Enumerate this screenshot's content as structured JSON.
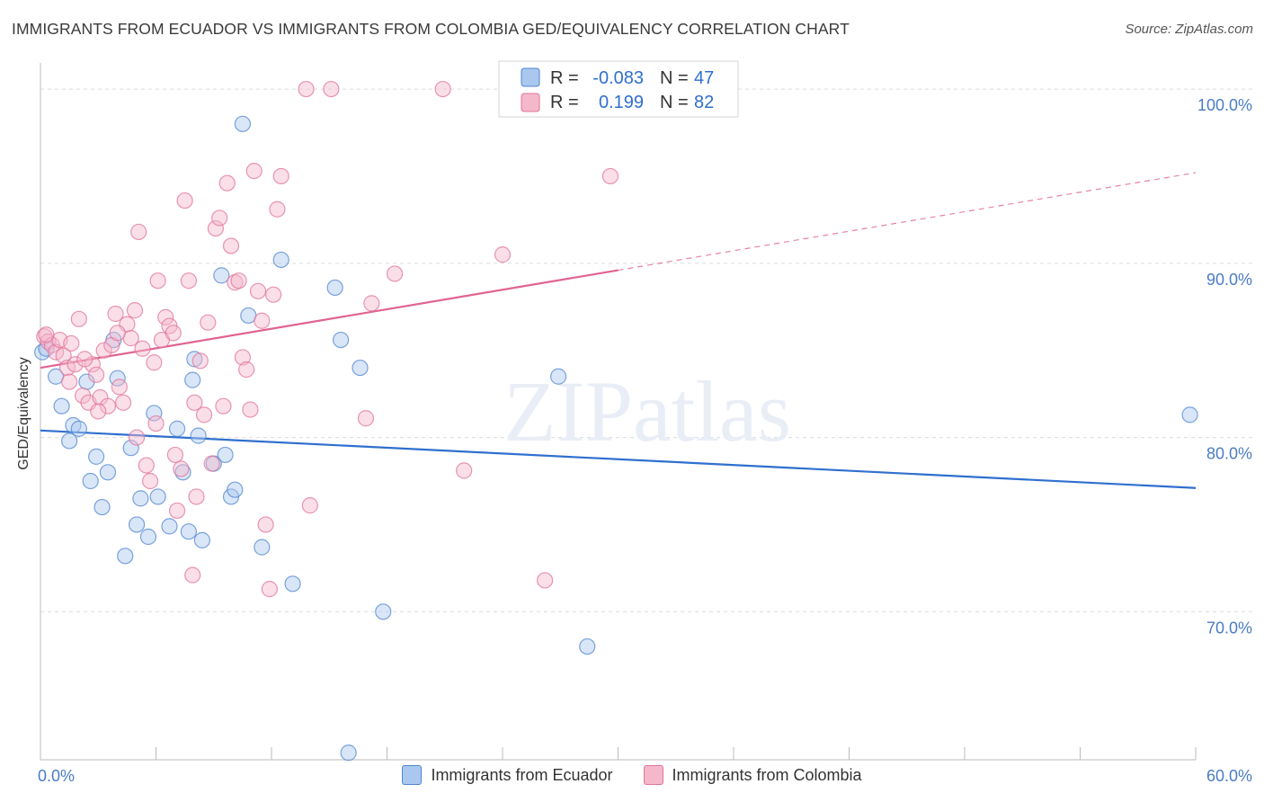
{
  "header": {
    "title": "IMMIGRANTS FROM ECUADOR VS IMMIGRANTS FROM COLOMBIA GED/EQUIVALENCY CORRELATION CHART",
    "source": "Source: ZipAtlas.com"
  },
  "watermark": "ZIPatlas",
  "colors": {
    "ecuador_fill": "#aac8ef",
    "ecuador_stroke": "#4f86cf",
    "ecuador_line": "#2f6fcf",
    "colombia_fill": "#f5b8cb",
    "colombia_stroke": "#e2739a",
    "colombia_line": "#e06391",
    "tick_text": "#4a7cc4",
    "grid": "#dcdcdc"
  },
  "stats_box": {
    "rows": [
      {
        "series": "ecuador",
        "r_label": "R =",
        "r_value": "-0.083",
        "n_label": "N =",
        "n_value": "47"
      },
      {
        "series": "colombia",
        "r_label": "R =",
        "r_value": "0.199",
        "n_label": "N =",
        "n_value": "82"
      }
    ]
  },
  "chart_data": {
    "type": "scatter",
    "title": "IMMIGRANTS FROM ECUADOR VS IMMIGRANTS FROM COLOMBIA GED/EQUIVALENCY CORRELATION CHART",
    "xlabel": "",
    "ylabel": "GED/Equivalency",
    "xlim": [
      0,
      60
    ],
    "ylim": [
      61.5,
      101.5
    ],
    "x_tick_labels": [
      "0.0%",
      "60.0%"
    ],
    "y_ticks": [
      70,
      80,
      90,
      100
    ],
    "y_tick_labels": [
      "70.0%",
      "80.0%",
      "90.0%",
      "100.0%"
    ],
    "grid": true,
    "legend_position": "bottom-center",
    "series": [
      {
        "name": "Immigrants from Ecuador",
        "key": "ecuador",
        "r": -0.083,
        "n": 47,
        "trend": {
          "x": [
            0,
            60
          ],
          "y": [
            80.4,
            77.1
          ]
        },
        "points": [
          [
            0.1,
            84.9
          ],
          [
            0.3,
            85.1
          ],
          [
            0.8,
            83.5
          ],
          [
            1.1,
            81.8
          ],
          [
            1.5,
            79.8
          ],
          [
            1.7,
            80.7
          ],
          [
            2.0,
            80.5
          ],
          [
            2.4,
            83.2
          ],
          [
            2.6,
            77.5
          ],
          [
            2.9,
            78.9
          ],
          [
            3.2,
            76.0
          ],
          [
            3.5,
            78.0
          ],
          [
            3.8,
            85.6
          ],
          [
            4.0,
            83.4
          ],
          [
            4.4,
            73.2
          ],
          [
            4.7,
            79.4
          ],
          [
            5.0,
            75.0
          ],
          [
            5.2,
            76.5
          ],
          [
            5.6,
            74.3
          ],
          [
            5.9,
            81.4
          ],
          [
            6.1,
            76.6
          ],
          [
            6.7,
            74.9
          ],
          [
            7.1,
            80.5
          ],
          [
            7.4,
            78.0
          ],
          [
            7.7,
            74.6
          ],
          [
            7.9,
            83.3
          ],
          [
            8.2,
            80.1
          ],
          [
            8.4,
            74.1
          ],
          [
            9.0,
            78.5
          ],
          [
            9.4,
            89.3
          ],
          [
            9.6,
            79.0
          ],
          [
            9.9,
            76.6
          ],
          [
            10.1,
            77.0
          ],
          [
            10.5,
            98.0
          ],
          [
            10.8,
            87.0
          ],
          [
            11.5,
            73.7
          ],
          [
            12.5,
            90.2
          ],
          [
            13.1,
            71.6
          ],
          [
            15.3,
            88.6
          ],
          [
            15.6,
            85.6
          ],
          [
            16.0,
            61.9
          ],
          [
            16.6,
            84.0
          ],
          [
            17.8,
            70.0
          ],
          [
            26.9,
            83.5
          ],
          [
            28.4,
            68.0
          ],
          [
            59.7,
            81.3
          ],
          [
            8.0,
            84.5
          ]
        ]
      },
      {
        "name": "Immigrants from Colombia",
        "key": "colombia",
        "r": 0.199,
        "n": 82,
        "trend": {
          "x": [
            0,
            30,
            60
          ],
          "y": [
            84.0,
            89.6,
            95.2
          ]
        },
        "trend_solid_until": 30,
        "points": [
          [
            0.2,
            85.8
          ],
          [
            0.4,
            85.5
          ],
          [
            0.6,
            85.3
          ],
          [
            0.8,
            84.9
          ],
          [
            1.0,
            85.6
          ],
          [
            1.2,
            84.7
          ],
          [
            1.4,
            84.0
          ],
          [
            1.6,
            85.4
          ],
          [
            1.8,
            84.2
          ],
          [
            2.0,
            86.8
          ],
          [
            2.2,
            82.4
          ],
          [
            2.5,
            82.0
          ],
          [
            2.7,
            84.2
          ],
          [
            2.9,
            83.6
          ],
          [
            3.1,
            82.3
          ],
          [
            3.3,
            85.0
          ],
          [
            3.5,
            81.8
          ],
          [
            3.7,
            85.3
          ],
          [
            3.9,
            87.1
          ],
          [
            4.1,
            82.9
          ],
          [
            4.3,
            82.0
          ],
          [
            4.5,
            86.5
          ],
          [
            4.7,
            85.7
          ],
          [
            4.9,
            87.3
          ],
          [
            5.1,
            91.8
          ],
          [
            5.3,
            85.1
          ],
          [
            5.5,
            78.4
          ],
          [
            5.7,
            77.5
          ],
          [
            5.9,
            84.3
          ],
          [
            6.1,
            89.0
          ],
          [
            6.3,
            85.6
          ],
          [
            6.5,
            86.9
          ],
          [
            6.7,
            86.4
          ],
          [
            6.9,
            86.0
          ],
          [
            7.1,
            75.8
          ],
          [
            7.3,
            78.2
          ],
          [
            7.5,
            93.6
          ],
          [
            7.7,
            89.0
          ],
          [
            7.9,
            72.1
          ],
          [
            8.1,
            76.6
          ],
          [
            8.3,
            84.4
          ],
          [
            8.5,
            81.3
          ],
          [
            8.7,
            86.6
          ],
          [
            8.9,
            78.5
          ],
          [
            9.1,
            92.0
          ],
          [
            9.3,
            92.6
          ],
          [
            9.5,
            81.8
          ],
          [
            9.7,
            94.6
          ],
          [
            9.9,
            91.0
          ],
          [
            10.1,
            88.9
          ],
          [
            10.3,
            89.0
          ],
          [
            10.5,
            84.6
          ],
          [
            10.7,
            83.9
          ],
          [
            10.9,
            81.6
          ],
          [
            11.1,
            95.3
          ],
          [
            11.3,
            88.4
          ],
          [
            11.5,
            86.7
          ],
          [
            11.7,
            75.0
          ],
          [
            11.9,
            71.3
          ],
          [
            12.1,
            88.2
          ],
          [
            12.3,
            93.1
          ],
          [
            12.5,
            95.0
          ],
          [
            13.8,
            100.0
          ],
          [
            14.0,
            76.1
          ],
          [
            15.1,
            100.0
          ],
          [
            16.9,
            81.1
          ],
          [
            17.2,
            87.7
          ],
          [
            18.4,
            89.4
          ],
          [
            20.9,
            100.0
          ],
          [
            22.0,
            78.1
          ],
          [
            24.0,
            90.5
          ],
          [
            26.2,
            71.8
          ],
          [
            29.6,
            95.0
          ],
          [
            0.3,
            85.9
          ],
          [
            1.5,
            83.2
          ],
          [
            2.3,
            84.5
          ],
          [
            3.0,
            81.5
          ],
          [
            4.0,
            86.0
          ],
          [
            5.0,
            80.0
          ],
          [
            6.0,
            80.8
          ],
          [
            7.0,
            79.0
          ],
          [
            8.0,
            82.0
          ]
        ]
      }
    ]
  }
}
